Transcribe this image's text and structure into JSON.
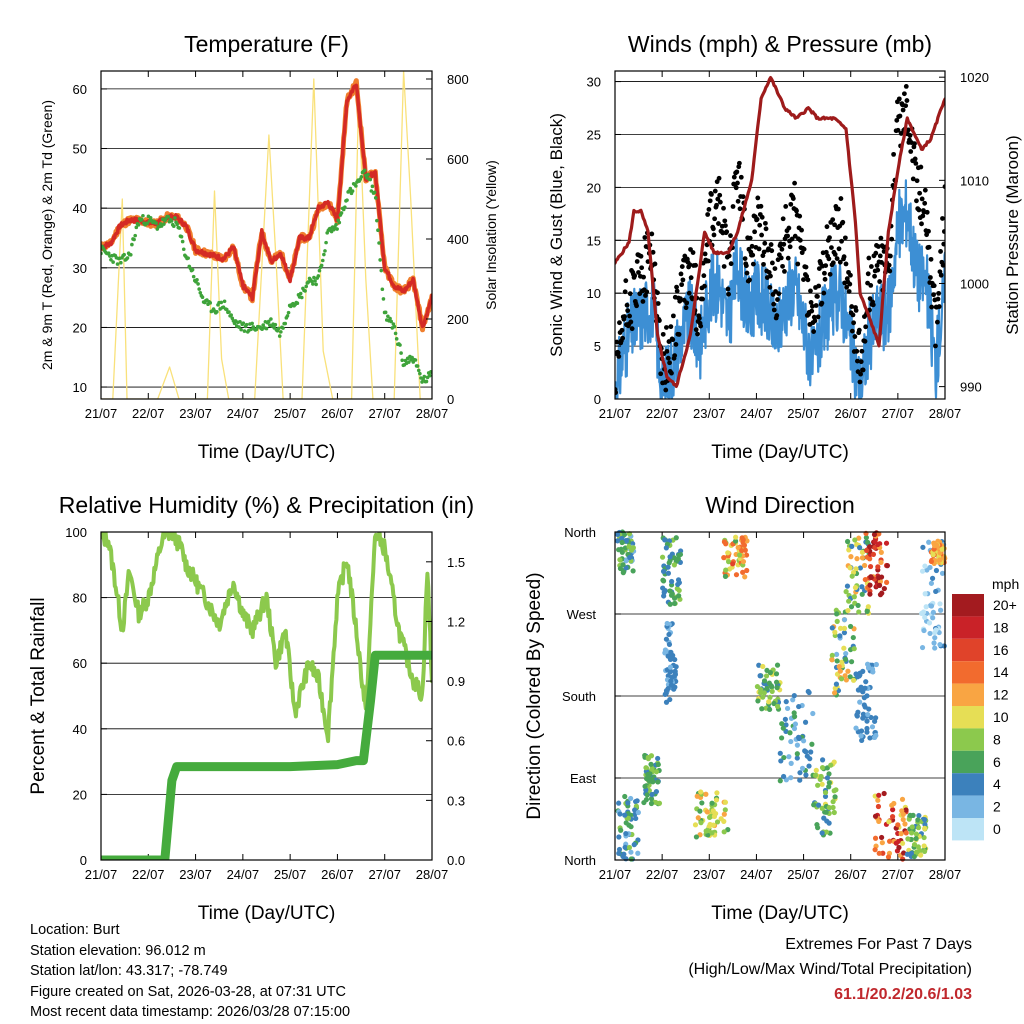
{
  "chart_data": [
    {
      "id": "temperature",
      "type": "line",
      "title": "Temperature (F)",
      "xlabel": "Time (Day/UTC)",
      "ylabel": "2m & 9m T (Red, Orange) & 2m Td (Green)",
      "y2label": "Solar Insolation (Yellow)",
      "ylim": [
        8,
        63
      ],
      "yticks": [
        10,
        20,
        30,
        40,
        50,
        60
      ],
      "y2lim": [
        0,
        820
      ],
      "y2ticks": [
        0,
        200,
        400,
        600,
        800
      ],
      "xlim": [
        0,
        7
      ],
      "xticks": [
        "21/07",
        "22/07",
        "23/07",
        "24/07",
        "25/07",
        "26/07",
        "27/07",
        "28/07"
      ],
      "grid": true,
      "series": [
        {
          "name": "2m T",
          "color": "#d42a25",
          "axis": "y1",
          "x": [
            0,
            0.2,
            0.4,
            0.6,
            0.8,
            1.0,
            1.2,
            1.4,
            1.6,
            1.8,
            2.0,
            2.2,
            2.4,
            2.6,
            2.8,
            3.0,
            3.2,
            3.4,
            3.6,
            3.8,
            4.0,
            4.2,
            4.4,
            4.6,
            4.8,
            5.0,
            5.2,
            5.4,
            5.6,
            5.8,
            6.0,
            6.2,
            6.4,
            6.6,
            6.8,
            7.0
          ],
          "values": [
            33.5,
            34,
            37,
            38,
            38,
            37.5,
            37.5,
            38.5,
            38.5,
            37,
            33,
            32.5,
            32,
            31.5,
            33.5,
            27,
            25,
            36,
            31,
            32.5,
            28,
            35,
            35,
            40,
            41,
            38,
            58,
            61,
            45,
            46,
            30,
            27,
            26,
            28,
            20,
            25
          ]
        },
        {
          "name": "9m T",
          "color": "#f07f2d",
          "axis": "y1",
          "x": [
            0,
            1,
            2,
            3,
            4,
            5,
            5.4,
            6,
            6.5,
            7
          ],
          "values": [
            33,
            37,
            33,
            27,
            29,
            38,
            59,
            45,
            27,
            25
          ]
        },
        {
          "name": "2m Td",
          "color": "#3ea33a",
          "axis": "y1",
          "x": [
            0,
            0.2,
            0.4,
            0.6,
            0.8,
            1.0,
            1.2,
            1.4,
            1.6,
            1.8,
            2.0,
            2.2,
            2.4,
            2.6,
            2.8,
            3.0,
            3.2,
            3.4,
            3.6,
            3.8,
            4.0,
            4.2,
            4.4,
            4.6,
            4.8,
            5.0,
            5.2,
            5.4,
            5.6,
            5.8,
            6.0,
            6.2,
            6.4,
            6.6,
            6.8,
            7.0
          ],
          "values": [
            33,
            32,
            31,
            32,
            38,
            38,
            37,
            38,
            37.5,
            32,
            28,
            24,
            23,
            24,
            21,
            20,
            20,
            20,
            21,
            19,
            24,
            25,
            28,
            28,
            36,
            37,
            42,
            44,
            46,
            42,
            22,
            20,
            14,
            15,
            11,
            12
          ]
        },
        {
          "name": "Solar Insolation",
          "color": "#f9e17a",
          "axis": "y2",
          "x": [
            0,
            0.25,
            0.45,
            0.55,
            0.75,
            1.0,
            1.2,
            1.45,
            1.65,
            2.0,
            2.25,
            2.4,
            2.55,
            2.7,
            3.0,
            3.25,
            3.55,
            3.7,
            3.85,
            4.0,
            4.25,
            4.5,
            4.7,
            4.9,
            5.0,
            5.3,
            5.45,
            5.6,
            5.75,
            6.0,
            6.2,
            6.4,
            6.55,
            6.75,
            7.0
          ],
          "values": [
            0,
            0,
            500,
            0,
            0,
            0,
            0,
            80,
            0,
            0,
            0,
            520,
            100,
            0,
            0,
            0,
            660,
            350,
            0,
            0,
            0,
            800,
            120,
            0,
            0,
            0,
            760,
            300,
            0,
            0,
            0,
            820,
            500,
            0,
            0
          ]
        }
      ]
    },
    {
      "id": "winds",
      "type": "line",
      "title": "Winds (mph) & Pressure (mb)",
      "xlabel": "Time (Day/UTC)",
      "ylabel": "Sonic Wind & Gust (Blue, Black)",
      "y2label": "Station Pressure (Maroon)",
      "ylim": [
        0,
        31
      ],
      "yticks": [
        0,
        5,
        10,
        15,
        20,
        25,
        30
      ],
      "y2lim": [
        988.8,
        1020.6
      ],
      "y2ticks": [
        990,
        1000,
        1010,
        1020
      ],
      "xlim": [
        0,
        7
      ],
      "xticks": [
        "21/07",
        "22/07",
        "23/07",
        "24/07",
        "25/07",
        "26/07",
        "27/07",
        "28/07"
      ],
      "grid": true,
      "series": [
        {
          "name": "Gust",
          "color": "#000000",
          "axis": "y1",
          "x": [
            0,
            0.2,
            0.4,
            0.6,
            0.8,
            1.0,
            1.2,
            1.4,
            1.6,
            1.8,
            2.0,
            2.2,
            2.4,
            2.6,
            2.8,
            3.0,
            3.2,
            3.4,
            3.6,
            3.8,
            4.0,
            4.2,
            4.4,
            4.6,
            4.8,
            5.0,
            5.2,
            5.4,
            5.6,
            5.8,
            6.0,
            6.2,
            6.4,
            6.6,
            6.8,
            7.0
          ],
          "values": [
            1,
            8,
            10,
            12,
            14,
            3,
            5,
            10,
            12,
            8,
            16,
            19,
            12,
            22,
            13,
            17,
            14,
            10,
            15,
            18,
            12,
            6,
            12,
            15,
            16,
            9,
            3,
            11,
            13,
            13,
            26,
            28,
            20,
            18,
            6,
            18
          ]
        },
        {
          "name": "Wind",
          "color": "#3d8fd4",
          "axis": "y1",
          "x": [
            0,
            0.2,
            0.4,
            0.6,
            0.8,
            1.0,
            1.2,
            1.4,
            1.6,
            1.8,
            2.0,
            2.2,
            2.4,
            2.6,
            2.8,
            3.0,
            3.2,
            3.4,
            3.6,
            3.8,
            4.0,
            4.2,
            4.4,
            4.6,
            4.8,
            5.0,
            5.2,
            5.4,
            5.6,
            5.8,
            6.0,
            6.2,
            6.4,
            6.6,
            6.8,
            7.0
          ],
          "values": [
            0.5,
            5,
            7,
            8,
            9,
            1,
            3,
            6,
            8,
            5,
            10,
            11,
            7,
            13,
            8,
            10,
            9,
            6,
            9,
            11,
            7,
            3,
            7,
            9,
            10,
            5,
            1,
            6,
            8,
            8,
            16,
            18,
            12,
            11,
            3,
            11
          ]
        },
        {
          "name": "Station Pressure",
          "color": "#9e1b1b",
          "axis": "y2",
          "x": [
            0,
            0.3,
            0.4,
            0.55,
            0.7,
            0.9,
            1.1,
            1.3,
            1.6,
            1.9,
            2.1,
            2.4,
            2.6,
            2.9,
            3.1,
            3.3,
            3.6,
            3.85,
            4.1,
            4.3,
            4.5,
            4.65,
            4.9,
            5.1,
            5.2,
            5.45,
            5.6,
            5.8,
            6.0,
            6.2,
            6.5,
            6.7,
            7.0
          ],
          "values": [
            1002,
            1004,
            1007,
            1007,
            1005,
            995,
            991,
            990,
            995,
            1005,
            1003,
            1003,
            1005,
            1010,
            1018,
            1020,
            1017,
            1016,
            1017,
            1016,
            1016,
            1016,
            1015,
            1006,
            999,
            996,
            994,
            1005,
            1011,
            1016,
            1013,
            1014,
            1018
          ]
        }
      ]
    },
    {
      "id": "humidity",
      "type": "line",
      "title": "Relative Humidity (%) & Precipitation (in)",
      "xlabel": "Time (Day/UTC)",
      "ylabel": "Percent & Total Rainfall",
      "ylim": [
        0,
        100
      ],
      "yticks": [
        0,
        20,
        40,
        60,
        80,
        100
      ],
      "y2lim": [
        0,
        1.65
      ],
      "y2ticks": [
        "0.0",
        "0.3",
        "0.6",
        "0.9",
        "1.2",
        "1.5"
      ],
      "xlim": [
        0,
        7
      ],
      "xticks": [
        "21/07",
        "22/07",
        "23/07",
        "24/07",
        "25/07",
        "26/07",
        "27/07",
        "28/07"
      ],
      "grid": true,
      "series": [
        {
          "name": "Relative Humidity",
          "color": "#8cc94d",
          "axis": "y1",
          "x": [
            0,
            0.15,
            0.3,
            0.45,
            0.6,
            0.8,
            1.0,
            1.2,
            1.3,
            1.5,
            1.7,
            1.8,
            2.0,
            2.2,
            2.5,
            2.8,
            3.0,
            3.2,
            3.5,
            3.7,
            3.9,
            4.1,
            4.4,
            4.6,
            4.8,
            5.0,
            5.2,
            5.4,
            5.6,
            5.8,
            6.0,
            6.3,
            6.6,
            6.8,
            6.9,
            7.0
          ],
          "values": [
            98,
            98,
            85,
            70,
            88,
            75,
            80,
            92,
            98,
            100,
            95,
            90,
            85,
            80,
            72,
            85,
            75,
            70,
            80,
            60,
            70,
            45,
            60,
            55,
            38,
            80,
            92,
            70,
            45,
            100,
            95,
            70,
            55,
            50,
            89,
            55
          ]
        },
        {
          "name": "Total Precipitation",
          "color": "#45ab3d",
          "axis": "y2",
          "x": [
            0,
            1.0,
            1.35,
            1.5,
            1.6,
            2.0,
            3.0,
            4.0,
            5.0,
            5.4,
            5.55,
            5.7,
            5.8,
            6.0,
            7.0
          ],
          "values": [
            0,
            0,
            0,
            0.4,
            0.47,
            0.47,
            0.47,
            0.47,
            0.48,
            0.5,
            0.5,
            0.8,
            1.03,
            1.03,
            1.03
          ]
        }
      ]
    },
    {
      "id": "direction",
      "type": "scatter",
      "title": "Wind Direction",
      "xlabel": "Time (Day/UTC)",
      "ylabel": "Direction (Colored By Speed)",
      "ylim": [
        0,
        360
      ],
      "ytick_labels": [
        "North",
        "East",
        "South",
        "West",
        "North"
      ],
      "xlim": [
        0,
        7
      ],
      "xticks": [
        "21/07",
        "22/07",
        "23/07",
        "24/07",
        "25/07",
        "26/07",
        "27/07",
        "28/07"
      ],
      "legend_title": "mph",
      "legend_labels": [
        "20+",
        "18",
        "16",
        "14",
        "12",
        "10",
        "8",
        "6",
        "4",
        "2",
        "0"
      ],
      "legend_colors": [
        "#a31b1f",
        "#c92228",
        "#e0432a",
        "#f26b2e",
        "#f9a543",
        "#e6de55",
        "#8cc94d",
        "#49a35a",
        "#3c81bc",
        "#79b6e3",
        "#bde4f6"
      ],
      "clusters": [
        {
          "x": [
            0.05,
            0.4
          ],
          "dir": [
            315,
            360
          ],
          "speed": [
            2,
            8
          ]
        },
        {
          "x": [
            0.05,
            0.5
          ],
          "dir": [
            0,
            70
          ],
          "speed": [
            2,
            8
          ]
        },
        {
          "x": [
            0.6,
            0.95
          ],
          "dir": [
            60,
            115
          ],
          "speed": [
            4,
            9
          ]
        },
        {
          "x": [
            1.0,
            1.4
          ],
          "dir": [
            280,
            360
          ],
          "speed": [
            3,
            8
          ]
        },
        {
          "x": [
            1.05,
            1.3
          ],
          "dir": [
            170,
            260
          ],
          "speed": [
            2,
            5
          ]
        },
        {
          "x": [
            1.7,
            2.4
          ],
          "dir": [
            25,
            75
          ],
          "speed": [
            6,
            12
          ]
        },
        {
          "x": [
            2.3,
            2.8
          ],
          "dir": [
            310,
            355
          ],
          "speed": [
            6,
            16
          ]
        },
        {
          "x": [
            3.0,
            3.5
          ],
          "dir": [
            165,
            215
          ],
          "speed": [
            4,
            10
          ]
        },
        {
          "x": [
            3.5,
            4.2
          ],
          "dir": [
            85,
            185
          ],
          "speed": [
            2,
            6
          ]
        },
        {
          "x": [
            4.2,
            4.7
          ],
          "dir": [
            20,
            110
          ],
          "speed": [
            4,
            10
          ]
        },
        {
          "x": [
            4.6,
            5.1
          ],
          "dir": [
            180,
            280
          ],
          "speed": [
            2,
            12
          ]
        },
        {
          "x": [
            4.9,
            5.4
          ],
          "dir": [
            270,
            355
          ],
          "speed": [
            3,
            12
          ]
        },
        {
          "x": [
            5.1,
            5.55
          ],
          "dir": [
            130,
            215
          ],
          "speed": [
            2,
            5
          ]
        },
        {
          "x": [
            5.3,
            5.8
          ],
          "dir": [
            290,
            360
          ],
          "speed": [
            12,
            22
          ]
        },
        {
          "x": [
            5.5,
            6.2
          ],
          "dir": [
            0,
            80
          ],
          "speed": [
            10,
            22
          ]
        },
        {
          "x": [
            6.2,
            6.6
          ],
          "dir": [
            0,
            50
          ],
          "speed": [
            4,
            10
          ]
        },
        {
          "x": [
            6.5,
            7.0
          ],
          "dir": [
            230,
            350
          ],
          "speed": [
            0,
            4
          ]
        },
        {
          "x": [
            6.7,
            7.0
          ],
          "dir": [
            325,
            350
          ],
          "speed": [
            10,
            14
          ]
        }
      ]
    }
  ],
  "info": {
    "location": "Location: Burt",
    "elevation": "Station elevation: 96.012 m",
    "latlon": "Station lat/lon: 43.317; -78.749",
    "created": "Figure created on Sat, 2026-03-28, at 07:31 UTC",
    "recent": "Most recent data timestamp: 2026/03/28 07:15:00"
  },
  "extremes": {
    "title": "Extremes For Past 7 Days",
    "subtitle": "(High/Low/Max Wind/Total Precipitation)",
    "values": "61.1/20.2/20.6/1.03"
  }
}
